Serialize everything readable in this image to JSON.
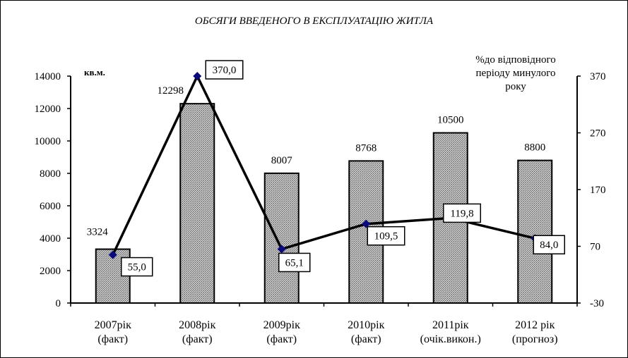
{
  "chart_data": {
    "type": "bar+line",
    "title": "ОБСЯГИ ВВЕДЕНОГО В ЕКСПЛУАТАЦІЮ ЖИТЛА",
    "categories": [
      [
        "2007рік",
        "(факт)"
      ],
      [
        "2008рік",
        "(факт)"
      ],
      [
        "2009рік",
        "(факт)"
      ],
      [
        "2010рік",
        "(факт)"
      ],
      [
        "2011рік",
        "(очік.викон.)"
      ],
      [
        "2012 рік",
        "(прогноз)"
      ]
    ],
    "series": [
      {
        "type": "bar",
        "axis": "left",
        "values": [
          3324,
          12298,
          8007,
          8768,
          10500,
          8800
        ],
        "labels": [
          "3324",
          "12298",
          "8007",
          "8768",
          "10500",
          "8800"
        ]
      },
      {
        "type": "line",
        "axis": "right",
        "values": [
          55.0,
          370.0,
          65.1,
          109.5,
          119.8,
          84.0
        ],
        "labels": [
          "55,0",
          "370,0",
          "65,1",
          "109,5",
          "119,8",
          "84,0"
        ]
      }
    ],
    "y_left": {
      "unit": "кв.м.",
      "ylim": [
        0,
        14000
      ],
      "ticks": [
        "0",
        "2000",
        "4000",
        "6000",
        "8000",
        "10000",
        "12000",
        "14000"
      ]
    },
    "y_right": {
      "label_lines": [
        "%до відповідного",
        "періоду минулого",
        "року"
      ],
      "ylim": [
        -30,
        370
      ],
      "ticks": [
        "-30",
        "70",
        "170",
        "270",
        "370"
      ]
    },
    "grid": false,
    "legend": "none",
    "colors": {
      "bar_fill": "#b8b8b8",
      "bar_stroke": "#000000",
      "line": "#000000",
      "marker": "#0a0a7a"
    }
  }
}
